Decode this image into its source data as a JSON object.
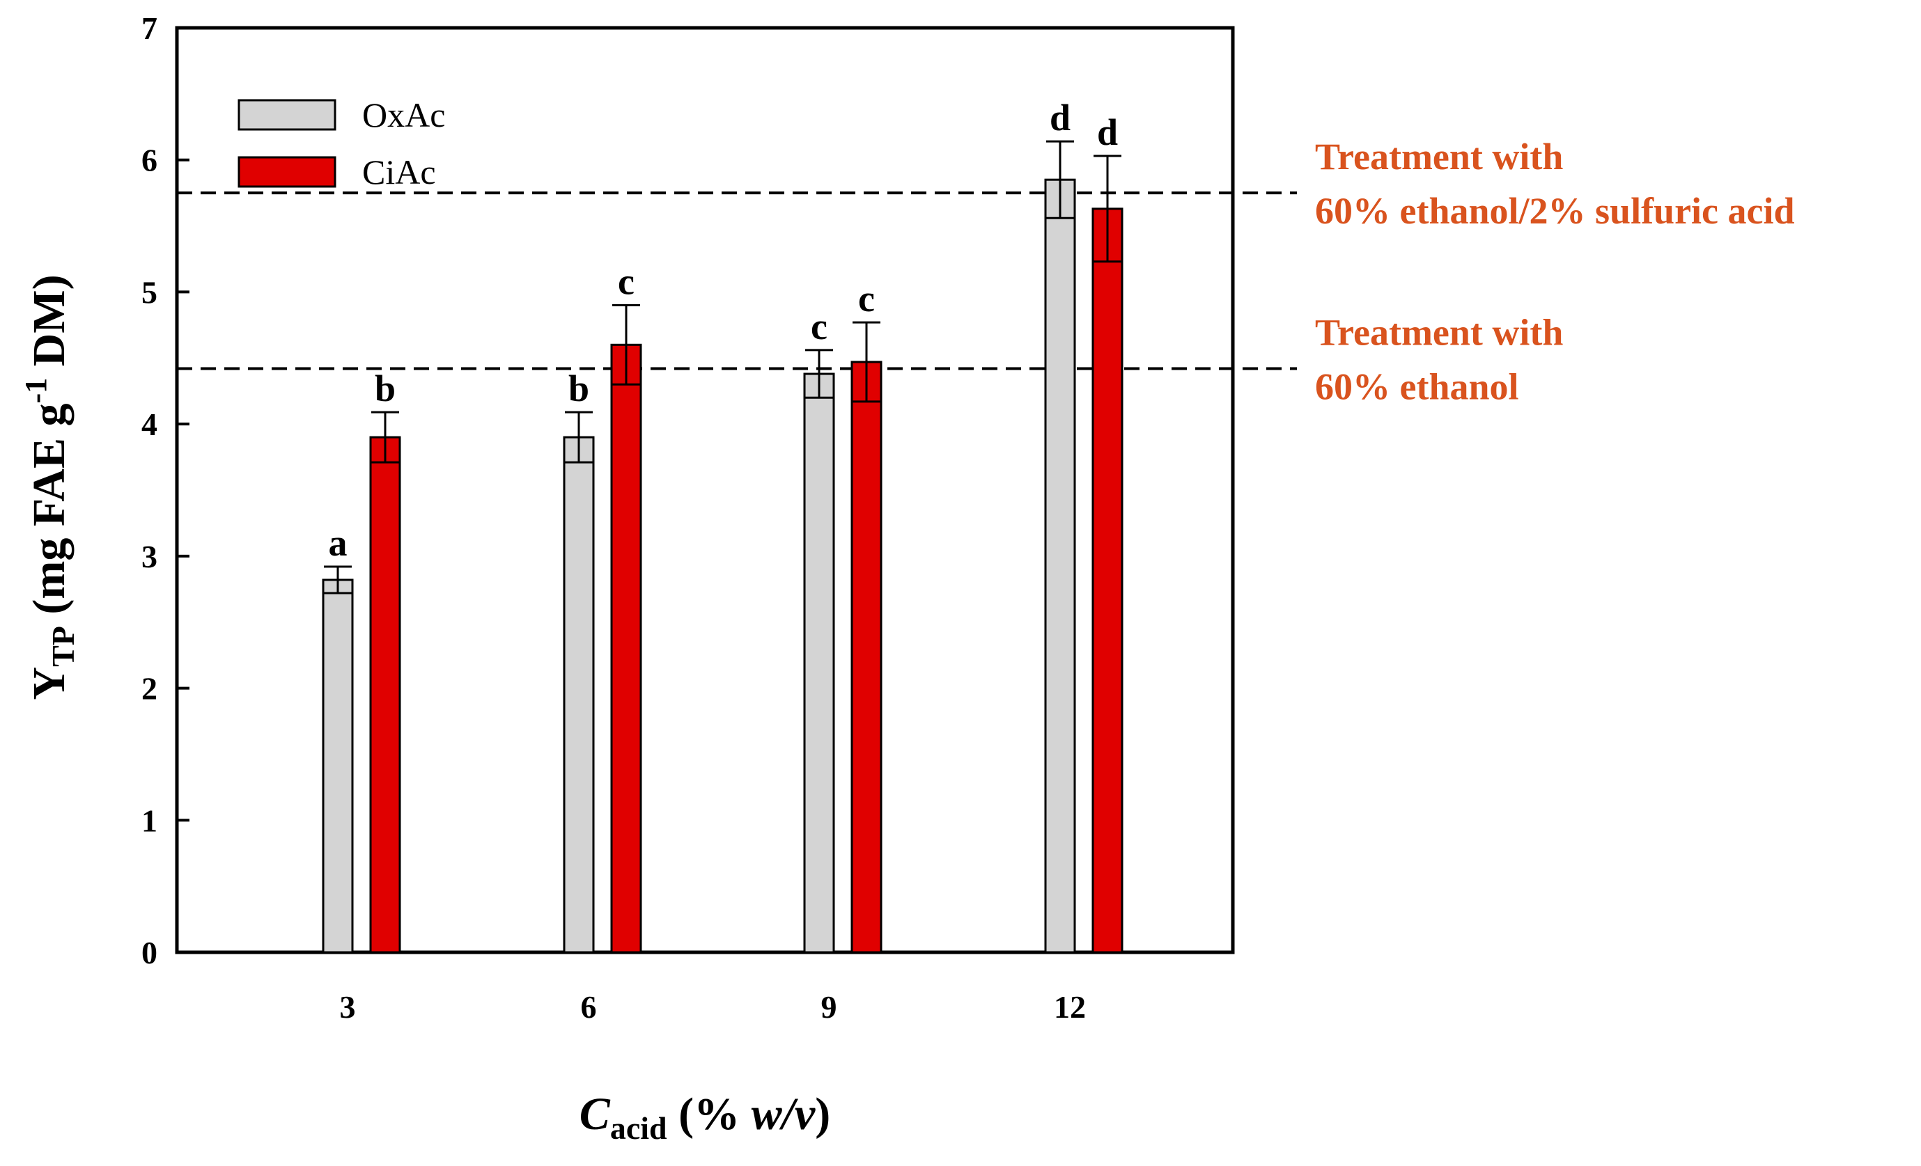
{
  "chart_data": {
    "type": "bar",
    "categories": [
      "3",
      "6",
      "9",
      "12"
    ],
    "series": [
      {
        "name": "OxAc",
        "color": "#d4d4d4",
        "values": [
          2.82,
          3.9,
          4.38,
          5.85
        ],
        "errors": [
          0.1,
          0.19,
          0.18,
          0.29
        ],
        "letters": [
          "a",
          "b",
          "c",
          "d"
        ]
      },
      {
        "name": "CiAc",
        "color": "#e00000",
        "values": [
          3.9,
          4.6,
          4.47,
          5.63
        ],
        "errors": [
          0.19,
          0.3,
          0.3,
          0.4
        ],
        "letters": [
          "b",
          "c",
          "c",
          "d"
        ]
      }
    ],
    "ylim": [
      0,
      7
    ],
    "yticks": [
      0,
      1,
      2,
      3,
      4,
      5,
      6,
      7
    ],
    "xlabel": {
      "main": "C",
      "sub": "acid",
      "rest_open": " (% ",
      "italic": "w/v",
      "rest_close": ")"
    },
    "ylabel": {
      "main": "Y",
      "sub": "TP",
      "rest": " (mg FAE g",
      "sup": "-1",
      "rest2": " DM)"
    },
    "reference_lines": [
      {
        "value": 5.75,
        "label_line1": "Treatment with",
        "label_line2": "60% ethanol/2% sulfuric acid"
      },
      {
        "value": 4.42,
        "label_line1": "Treatment with",
        "label_line2": "60% ethanol"
      }
    ],
    "ref_color": "#d9531e",
    "legend_position": "top-left"
  }
}
